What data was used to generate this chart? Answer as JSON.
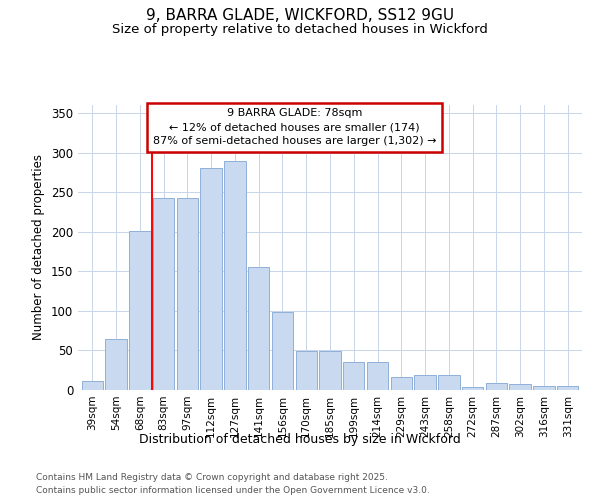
{
  "title_line1": "9, BARRA GLADE, WICKFORD, SS12 9GU",
  "title_line2": "Size of property relative to detached houses in Wickford",
  "xlabel": "Distribution of detached houses by size in Wickford",
  "ylabel": "Number of detached properties",
  "categories": [
    "39sqm",
    "54sqm",
    "68sqm",
    "83sqm",
    "97sqm",
    "112sqm",
    "127sqm",
    "141sqm",
    "156sqm",
    "170sqm",
    "185sqm",
    "199sqm",
    "214sqm",
    "229sqm",
    "243sqm",
    "258sqm",
    "272sqm",
    "287sqm",
    "302sqm",
    "316sqm",
    "331sqm"
  ],
  "values": [
    12,
    64,
    201,
    242,
    243,
    281,
    289,
    155,
    98,
    49,
    49,
    36,
    36,
    17,
    19,
    19,
    4,
    9,
    8,
    5,
    5
  ],
  "bar_color": "#c8d9f0",
  "bar_edge_color": "#8fb0d8",
  "red_line_x": 2.5,
  "annotation_title": "9 BARRA GLADE: 78sqm",
  "annotation_line1": "← 12% of detached houses are smaller (174)",
  "annotation_line2": "87% of semi-detached houses are larger (1,302) →",
  "annotation_box_facecolor": "#ffffff",
  "annotation_box_edgecolor": "#cc0000",
  "grid_color": "#c8d4e8",
  "background_color": "#ffffff",
  "plot_bg_color": "#ffffff",
  "ylim": [
    0,
    360
  ],
  "yticks": [
    0,
    50,
    100,
    150,
    200,
    250,
    300,
    350
  ],
  "footer_line1": "Contains HM Land Registry data © Crown copyright and database right 2025.",
  "footer_line2": "Contains public sector information licensed under the Open Government Licence v3.0."
}
